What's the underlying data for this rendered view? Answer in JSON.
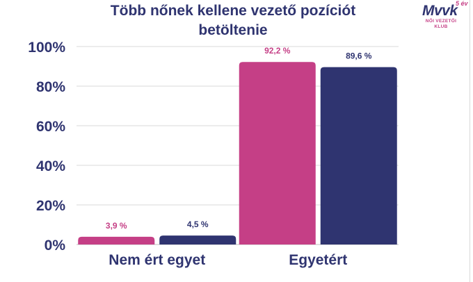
{
  "logo": {
    "main": "Mvvk",
    "five": "5 év",
    "sub1": "NŐI VEZETŐI",
    "sub2": "KLUB"
  },
  "chart_data": {
    "type": "bar",
    "title": "Több nőnek kellene vezető pozíciót betöltenie",
    "categories": [
      "Nem ért egyet",
      "Egyetért"
    ],
    "series": [
      {
        "values": [
          3.9,
          92.2
        ],
        "labels": [
          "3,9 %",
          "92,2 %"
        ],
        "color": "#c53f86"
      },
      {
        "values": [
          4.5,
          89.6
        ],
        "labels": [
          "4,5 %",
          "89,6 %"
        ],
        "color": "#2f3470"
      }
    ],
    "ylim": [
      0,
      100
    ],
    "yticks": [
      0,
      20,
      40,
      60,
      80,
      100
    ],
    "ytick_labels": [
      "0%",
      "20%",
      "40%",
      "60%",
      "80%",
      "100%"
    ],
    "grid": true
  }
}
